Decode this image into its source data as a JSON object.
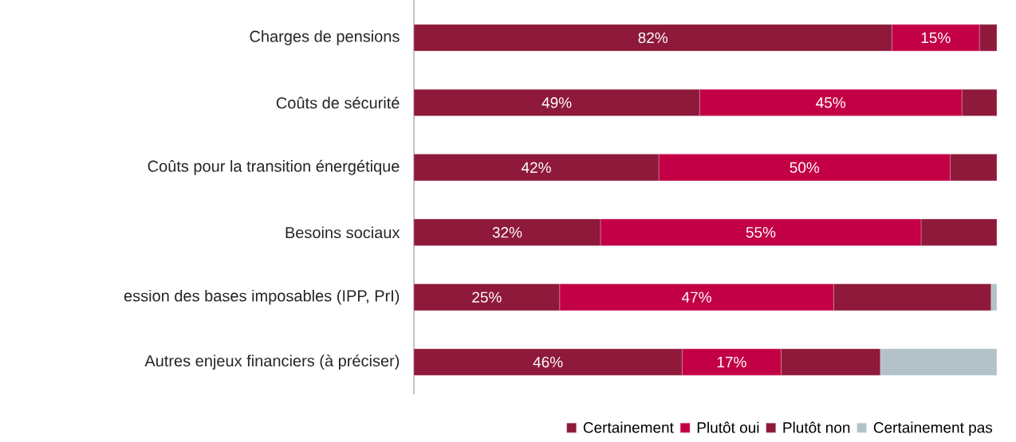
{
  "chart_data": {
    "type": "bar",
    "orientation": "horizontal",
    "stacked": true,
    "legend": "bottom right",
    "categories": [
      "Charges de pensions",
      "Coûts de sécurité",
      "Coûts pour la transition énergétique",
      "Besoins sociaux",
      "ession des bases imposables (IPP, PrI)",
      "Autres enjeux financiers (à préciser)"
    ],
    "series": [
      {
        "name": "Certainement",
        "color": "#8e193a",
        "values": [
          82,
          49,
          42,
          32,
          25,
          46
        ],
        "value_labels": [
          "82%",
          "49%",
          "42%",
          "32%",
          "25%",
          "46%"
        ]
      },
      {
        "name": "Plutôt oui",
        "color": "#c30045",
        "values": [
          15,
          45,
          50,
          55,
          47,
          17
        ],
        "value_labels": [
          "15%",
          "45%",
          "50%",
          "55%",
          "47%",
          "17%"
        ]
      },
      {
        "name": "Plutôt non",
        "color": "#8e193a",
        "values": [
          3,
          6,
          8,
          13,
          27,
          17
        ]
      },
      {
        "name": "Certainement pas",
        "color": "#b3c2c9",
        "values": [
          0,
          0,
          0,
          0,
          1,
          20
        ]
      }
    ]
  }
}
